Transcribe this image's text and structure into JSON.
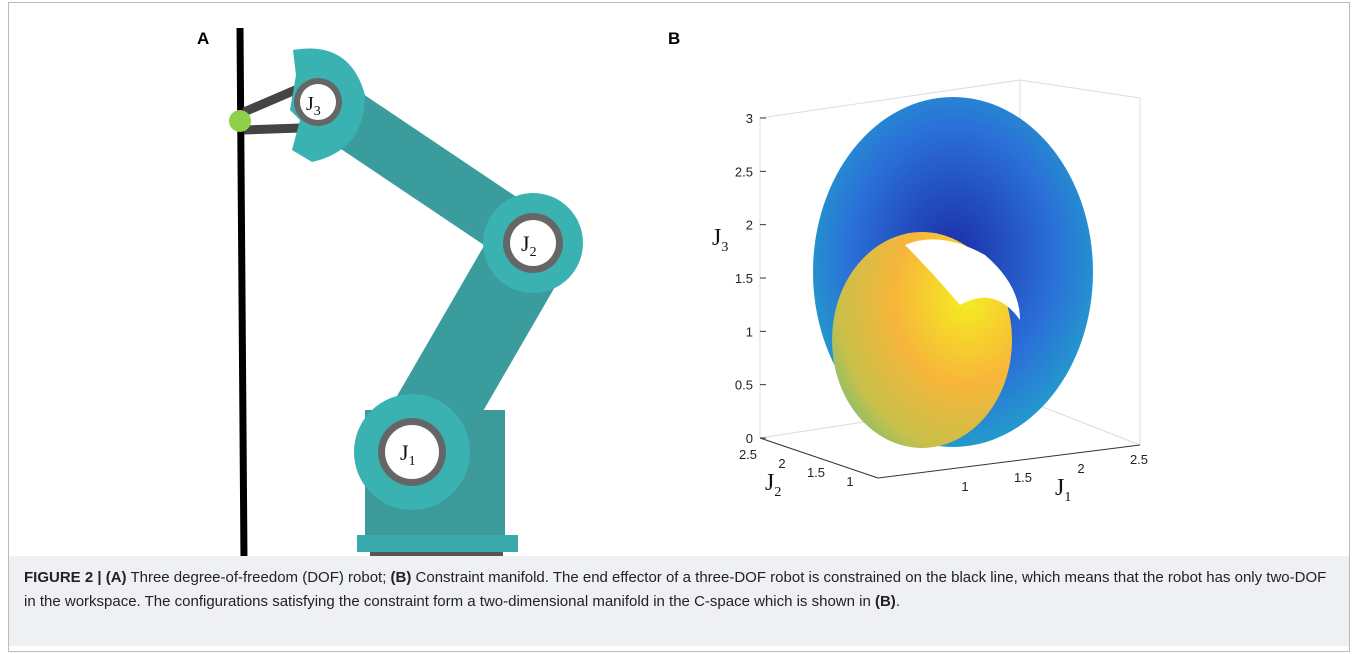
{
  "panel_a": {
    "label": "A",
    "joints": [
      {
        "base": "J",
        "sub": "1"
      },
      {
        "base": "J",
        "sub": "2"
      },
      {
        "base": "J",
        "sub": "3"
      }
    ]
  },
  "panel_b": {
    "label": "B",
    "z_axis": {
      "base": "J",
      "sub": "3",
      "ticks": [
        "0",
        "0.5",
        "1",
        "1.5",
        "2",
        "2.5",
        "3"
      ]
    },
    "y_axis": {
      "base": "J",
      "sub": "2",
      "ticks": [
        "2.5",
        "2",
        "1.5",
        "1"
      ]
    },
    "x_axis": {
      "base": "J",
      "sub": "1",
      "ticks": [
        "1",
        "1.5",
        "2",
        "2.5"
      ]
    }
  },
  "caption": {
    "parts": [
      "FIGURE 2 | ",
      "(A)",
      " Three degree-of-freedom (DOF) robot; ",
      "(B)",
      " Constraint manifold. The end effector of a three-DOF robot is constrained on the black line, which means that the robot has only two-DOF in the workspace. The configurations satisfying the constraint form a two-dimensional manifold in the C-space which is shown in ",
      "(B)",
      "."
    ]
  }
}
